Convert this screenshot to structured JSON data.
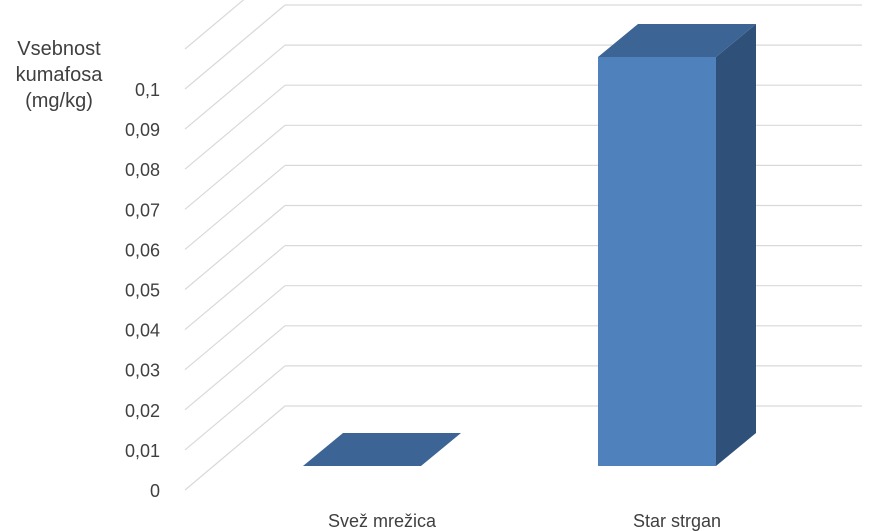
{
  "chart_data": {
    "type": "bar",
    "style": "3d-column",
    "title": "",
    "xlabel": "",
    "ylabel_lines": [
      "Vsebnost",
      "kumafosa",
      "(mg/kg)"
    ],
    "categories": [
      "Svež mrežica",
      "Star strgan"
    ],
    "values": [
      0.0,
      0.102
    ],
    "ylim": [
      0,
      0.1
    ],
    "yticks": [
      {
        "value": 0,
        "label": "0"
      },
      {
        "value": 0.01,
        "label": "0,01"
      },
      {
        "value": 0.02,
        "label": "0,02"
      },
      {
        "value": 0.03,
        "label": "0,03"
      },
      {
        "value": 0.04,
        "label": "0,04"
      },
      {
        "value": 0.05,
        "label": "0,05"
      },
      {
        "value": 0.06,
        "label": "0,06"
      },
      {
        "value": 0.07,
        "label": "0,07"
      },
      {
        "value": 0.08,
        "label": "0,08"
      },
      {
        "value": 0.09,
        "label": "0,09"
      },
      {
        "value": 0.1,
        "label": "0,1"
      }
    ],
    "grid": true,
    "legend": "none",
    "colors": {
      "bar_front": "#4f81bd",
      "bar_side": "#2f5078",
      "bar_top": "#3c6494",
      "gridline": "#d9d9d9",
      "text": "#404040"
    }
  }
}
